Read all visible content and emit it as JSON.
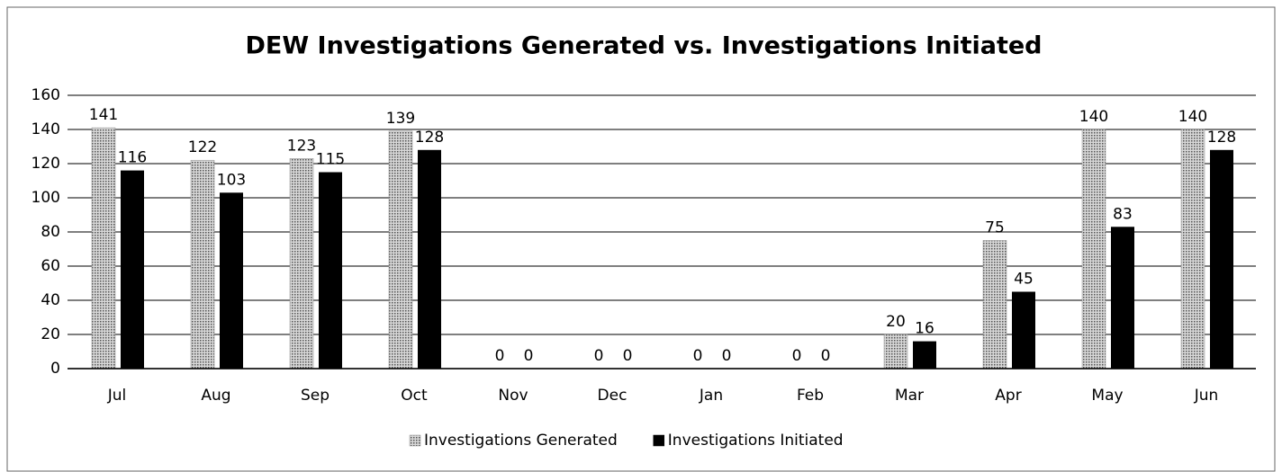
{
  "chart_data": {
    "type": "bar",
    "title": "DEW Investigations Generated vs. Investigations Initiated",
    "categories": [
      "Jul",
      "Aug",
      "Sep",
      "Oct",
      "Nov",
      "Dec",
      "Jan",
      "Feb",
      "Mar",
      "Apr",
      "May",
      "Jun"
    ],
    "series": [
      {
        "name": "Investigations Generated",
        "color": "#8a8a8a",
        "values": [
          141,
          122,
          123,
          139,
          0,
          0,
          0,
          0,
          20,
          75,
          140,
          140
        ]
      },
      {
        "name": "Investigations Initiated",
        "color": "#000000",
        "values": [
          116,
          103,
          115,
          128,
          0,
          0,
          0,
          0,
          16,
          45,
          83,
          128
        ]
      }
    ],
    "ylim": [
      0,
      160
    ],
    "yticks": [
      0,
      20,
      40,
      60,
      80,
      100,
      120,
      140,
      160
    ],
    "grid": true,
    "legend": "bottom"
  }
}
